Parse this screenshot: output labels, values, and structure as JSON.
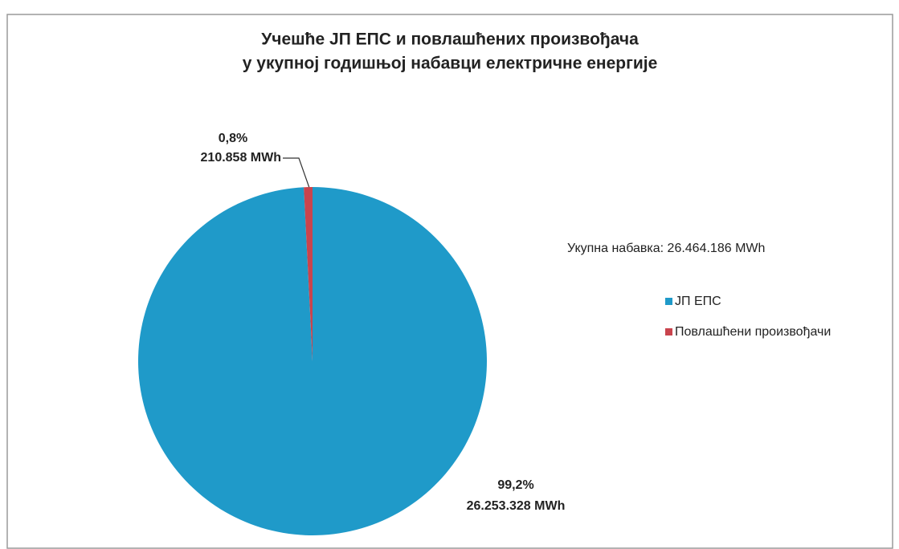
{
  "chart_data": {
    "type": "pie",
    "title": [
      "Учешће ЈП ЕПС и повлашћених произвођача",
      "у укупној годишњој набавци електричне енергије"
    ],
    "annotation": "Укупна набавка:  26.464.186 MWh",
    "categories": [
      "ЈП ЕПС",
      "Повлашћени произвођачи"
    ],
    "values": [
      99.2,
      0.8
    ],
    "value_labels": [
      "99,2%",
      "0,8%"
    ],
    "energy_labels": [
      "26.253.328 MWh",
      "210.858 MWh"
    ],
    "colors": [
      "#1f9ac9",
      "#c9444d"
    ],
    "start_angle": 0,
    "direction": "clockwise",
    "legend": "right"
  }
}
